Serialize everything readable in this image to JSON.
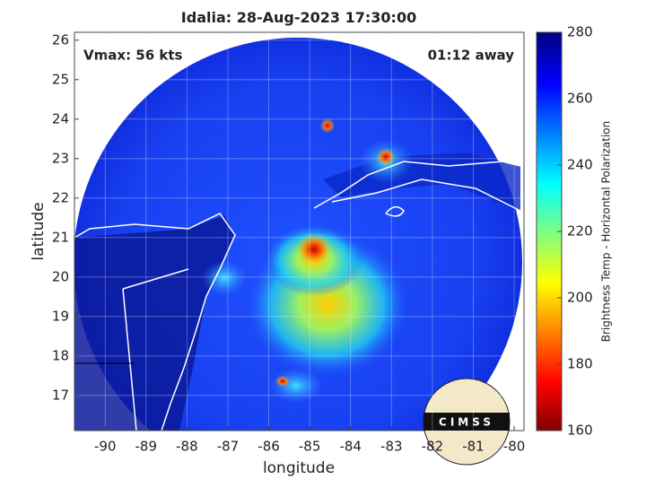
{
  "chart_data": {
    "type": "map",
    "title": "Idalia: 28-Aug-2023 17:30:00",
    "annotations": {
      "left": "Vmax: 56 kts",
      "right": "01:12 away"
    },
    "xlabel": "longitude",
    "ylabel": "latitude",
    "xlim": [
      -90.75,
      -79.76
    ],
    "ylim": [
      16.11,
      26.2
    ],
    "xticks": [
      -90,
      -89,
      -88,
      -87,
      -86,
      -85,
      -84,
      -83,
      -82,
      -81,
      -80
    ],
    "yticks": [
      17,
      18,
      19,
      20,
      21,
      22,
      23,
      24,
      25,
      26
    ],
    "grid": true,
    "colorbar": {
      "label": "Brightness Temp - Horizontal Polarization",
      "lim": [
        160,
        280
      ],
      "ticks": [
        160,
        180,
        200,
        220,
        240,
        260,
        280
      ]
    },
    "logo": "CIMSS"
  }
}
